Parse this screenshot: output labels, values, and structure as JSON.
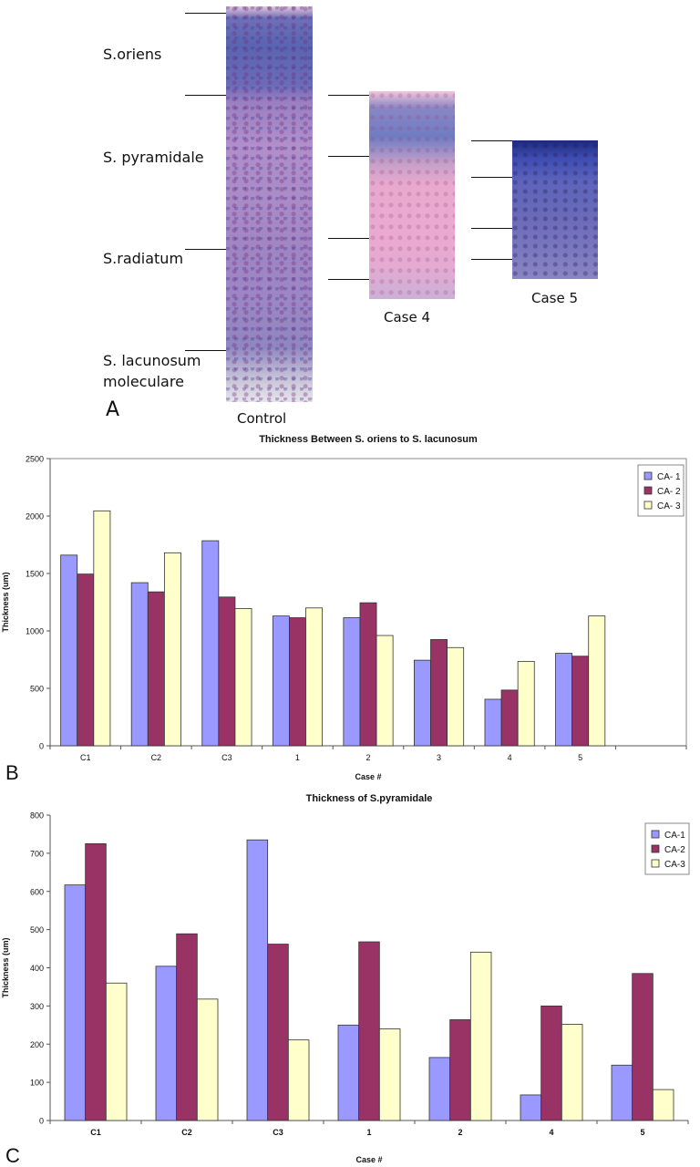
{
  "panel_a": {
    "letter": "A",
    "layers": {
      "oriens": "S.oriens",
      "pyramidale": "S. pyramidale",
      "radiatum": "S.radiatum",
      "lacunosum_line1": "S. lacunosum",
      "lacunosum_line2": "moleculare"
    },
    "sample_labels": {
      "control": "Control",
      "case4": "Case 4",
      "case5": "Case 5"
    }
  },
  "colors": {
    "ca1": "#9999ff",
    "ca2": "#993366",
    "ca3": "#ffffcc"
  },
  "chart_data": [
    {
      "panel_letter": "B",
      "type": "bar",
      "title": "Thickness Between S. oriens to S. lacunosum",
      "xlabel": "Case #",
      "ylabel": "Thickness (um)",
      "ylim": [
        0,
        2500
      ],
      "yticks": [
        0,
        500,
        1000,
        1500,
        2000,
        2500
      ],
      "grid": false,
      "legend": "top-right",
      "categories": [
        "C1",
        "C2",
        "C3",
        "1",
        "2",
        "3",
        "4",
        "5"
      ],
      "empty_trailing_slots": 1,
      "series": [
        {
          "name": "CA- 1",
          "values": [
            1660,
            1420,
            1785,
            1130,
            1115,
            745,
            405,
            805
          ]
        },
        {
          "name": "CA- 2",
          "values": [
            1495,
            1340,
            1295,
            1115,
            1245,
            925,
            485,
            780
          ]
        },
        {
          "name": "CA- 3",
          "values": [
            2045,
            1680,
            1195,
            1200,
            960,
            855,
            735,
            1130
          ]
        }
      ]
    },
    {
      "panel_letter": "C",
      "type": "bar",
      "title": "Thickness of S.pyramidale",
      "xlabel": "Case #",
      "ylabel": "Thickness (um)",
      "ylim": [
        0,
        800
      ],
      "yticks": [
        0,
        100,
        200,
        300,
        400,
        500,
        600,
        700,
        800
      ],
      "grid": false,
      "legend": "top-right",
      "categories": [
        "C1",
        "C2",
        "C3",
        "1",
        "2",
        "4",
        "5"
      ],
      "empty_trailing_slots": 0,
      "series": [
        {
          "name": "CA-1",
          "values": [
            617,
            404,
            735,
            250,
            165,
            67,
            145
          ]
        },
        {
          "name": "CA-2",
          "values": [
            725,
            489,
            462,
            468,
            264,
            300,
            385
          ]
        },
        {
          "name": "CA-3",
          "values": [
            360,
            318,
            211,
            240,
            441,
            252,
            81
          ]
        }
      ]
    }
  ]
}
